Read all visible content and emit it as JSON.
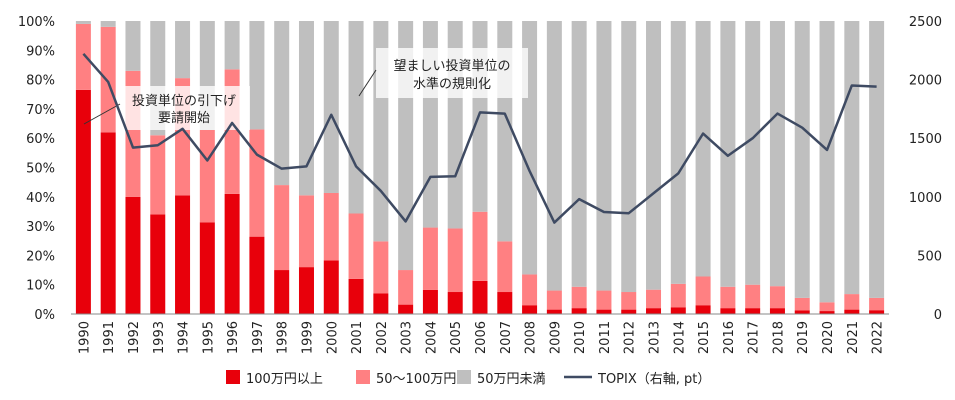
{
  "chart_data": {
    "type": "bar",
    "stacked": true,
    "categories": [
      "1990",
      "1991",
      "1992",
      "1993",
      "1994",
      "1995",
      "1996",
      "1997",
      "1998",
      "1999",
      "2000",
      "2001",
      "2002",
      "2003",
      "2004",
      "2005",
      "2006",
      "2007",
      "2008",
      "2009",
      "2010",
      "2011",
      "2012",
      "2013",
      "2014",
      "2015",
      "2016",
      "2017",
      "2018",
      "2019",
      "2020",
      "2021",
      "2022"
    ],
    "series": [
      {
        "name": "100万円以上",
        "color": "#e8000b",
        "values": [
          76.5,
          62,
          40,
          34,
          40.5,
          31.3,
          41,
          26.4,
          15,
          16,
          18.3,
          12,
          7,
          3.2,
          8.2,
          7.5,
          11.3,
          7.5,
          3,
          1.5,
          2,
          1.5,
          1.5,
          2,
          2.3,
          3,
          2,
          2,
          2,
          1.2,
          1,
          1.5,
          1.3
        ]
      },
      {
        "name": "50～100万円",
        "color": "#ff8082",
        "values": [
          22.5,
          36,
          43,
          27,
          40,
          31.5,
          42.5,
          36.6,
          29,
          24.5,
          23,
          22.3,
          17.8,
          11.8,
          21.3,
          21.7,
          23.6,
          17.3,
          10.5,
          6.5,
          7.3,
          6.5,
          6,
          6.3,
          8,
          9.8,
          7.3,
          8,
          7.5,
          4.3,
          3,
          5.3,
          4.2
        ]
      },
      {
        "name": "50万円未満",
        "color": "#bfbfbf",
        "values": [
          1,
          2,
          17,
          39,
          19.5,
          37.2,
          16.5,
          37,
          56,
          59.5,
          58.7,
          65.7,
          75.2,
          85,
          70.5,
          70.8,
          65.1,
          75.2,
          86.5,
          92,
          90.7,
          92,
          92.5,
          91.7,
          89.7,
          87.2,
          90.7,
          90,
          90.5,
          94.5,
          96,
          93.2,
          94.5
        ]
      }
    ],
    "line": {
      "name": "TOPIX（右軸, pt）",
      "color": "#3f4b63",
      "values": [
        2220,
        1980,
        1420,
        1440,
        1580,
        1310,
        1630,
        1360,
        1240,
        1260,
        1700,
        1260,
        1050,
        790,
        1170,
        1175,
        1720,
        1710,
        1220,
        780,
        980,
        870,
        860,
        1030,
        1200,
        1540,
        1350,
        1500,
        1710,
        1590,
        1400,
        1950,
        1940
      ]
    },
    "y_left": {
      "min": 0,
      "max": 100,
      "ticks": [
        "0%",
        "10%",
        "20%",
        "30%",
        "40%",
        "50%",
        "60%",
        "70%",
        "80%",
        "90%",
        "100%"
      ]
    },
    "y_right": {
      "min": 0,
      "max": 2500,
      "ticks": [
        "0",
        "500",
        "1000",
        "1500",
        "2000",
        "2500"
      ]
    },
    "annotations": [
      {
        "lines": [
          "投資単位の引下げ",
          "要請開始"
        ],
        "category": "1991"
      },
      {
        "lines": [
          "望ましい投資単位の",
          "水準の規則化"
        ],
        "category": "2001"
      }
    ],
    "legend_position": "bottom",
    "grid": false
  }
}
